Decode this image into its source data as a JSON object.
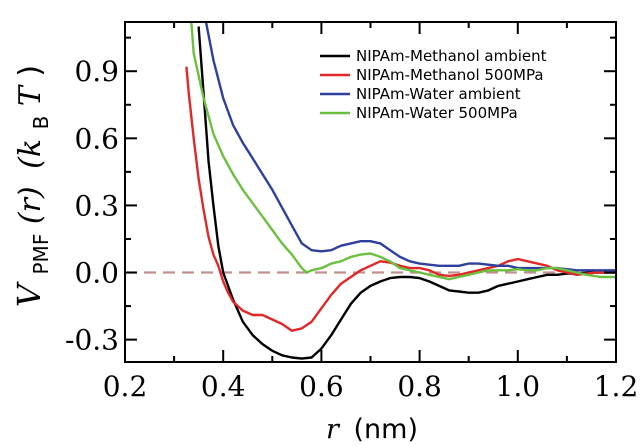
{
  "chart_data": {
    "type": "line",
    "xlabel": {
      "var": "r",
      "unit": "(nm)"
    },
    "ylabel": {
      "var": "V",
      "sub": "PMF",
      "arg": "(r)",
      "unit_open": "(k",
      "unit_sub": "B",
      "unit_T": "T",
      "unit_close": ")"
    },
    "xlim": [
      0.2,
      1.2
    ],
    "ylim": [
      -0.4,
      1.12
    ],
    "x_ticks": [
      0.2,
      0.4,
      0.6,
      0.8,
      1.0,
      1.2
    ],
    "x_tick_labels": [
      "0.2",
      "0.4",
      "0.6",
      "0.8",
      "1.0",
      "1.2"
    ],
    "y_ticks": [
      -0.3,
      0.0,
      0.3,
      0.6,
      0.9
    ],
    "y_tick_labels": [
      "-0.3",
      "0.0",
      "0.3",
      "0.6",
      "0.9"
    ],
    "reference_line": {
      "y": 0.0,
      "style": "dashed",
      "color": "#c09090"
    },
    "legend_position": "top-right",
    "series": [
      {
        "name": "NIPAm-Methanol ambient",
        "color": "#000000",
        "points": [
          [
            0.35,
            1.1
          ],
          [
            0.36,
            0.8
          ],
          [
            0.37,
            0.5
          ],
          [
            0.38,
            0.3
          ],
          [
            0.39,
            0.12
          ],
          [
            0.4,
            0.0
          ],
          [
            0.42,
            -0.12
          ],
          [
            0.44,
            -0.22
          ],
          [
            0.46,
            -0.28
          ],
          [
            0.48,
            -0.32
          ],
          [
            0.5,
            -0.35
          ],
          [
            0.52,
            -0.37
          ],
          [
            0.54,
            -0.38
          ],
          [
            0.56,
            -0.385
          ],
          [
            0.58,
            -0.38
          ],
          [
            0.6,
            -0.34
          ],
          [
            0.62,
            -0.28
          ],
          [
            0.64,
            -0.21
          ],
          [
            0.66,
            -0.14
          ],
          [
            0.68,
            -0.09
          ],
          [
            0.7,
            -0.06
          ],
          [
            0.72,
            -0.04
          ],
          [
            0.74,
            -0.025
          ],
          [
            0.76,
            -0.02
          ],
          [
            0.78,
            -0.02
          ],
          [
            0.8,
            -0.025
          ],
          [
            0.82,
            -0.04
          ],
          [
            0.84,
            -0.06
          ],
          [
            0.86,
            -0.08
          ],
          [
            0.88,
            -0.085
          ],
          [
            0.9,
            -0.09
          ],
          [
            0.92,
            -0.09
          ],
          [
            0.94,
            -0.08
          ],
          [
            0.96,
            -0.06
          ],
          [
            0.98,
            -0.05
          ],
          [
            1.0,
            -0.04
          ],
          [
            1.02,
            -0.03
          ],
          [
            1.04,
            -0.02
          ],
          [
            1.06,
            -0.01
          ],
          [
            1.08,
            -0.01
          ],
          [
            1.1,
            -0.005
          ],
          [
            1.12,
            -0.005
          ],
          [
            1.15,
            0.0
          ],
          [
            1.2,
            0.0
          ]
        ]
      },
      {
        "name": "NIPAm-Methanol 500MPa",
        "color": "#e02828",
        "points": [
          [
            0.325,
            0.92
          ],
          [
            0.33,
            0.8
          ],
          [
            0.34,
            0.6
          ],
          [
            0.35,
            0.42
          ],
          [
            0.36,
            0.28
          ],
          [
            0.37,
            0.16
          ],
          [
            0.38,
            0.08
          ],
          [
            0.39,
            0.03
          ],
          [
            0.4,
            -0.04
          ],
          [
            0.41,
            -0.09
          ],
          [
            0.42,
            -0.13
          ],
          [
            0.44,
            -0.17
          ],
          [
            0.46,
            -0.19
          ],
          [
            0.48,
            -0.19
          ],
          [
            0.5,
            -0.21
          ],
          [
            0.52,
            -0.23
          ],
          [
            0.54,
            -0.26
          ],
          [
            0.56,
            -0.25
          ],
          [
            0.58,
            -0.22
          ],
          [
            0.6,
            -0.16
          ],
          [
            0.62,
            -0.1
          ],
          [
            0.64,
            -0.05
          ],
          [
            0.66,
            -0.02
          ],
          [
            0.68,
            0.01
          ],
          [
            0.7,
            0.03
          ],
          [
            0.72,
            0.05
          ],
          [
            0.74,
            0.045
          ],
          [
            0.76,
            0.03
          ],
          [
            0.78,
            0.02
          ],
          [
            0.8,
            0.02
          ],
          [
            0.82,
            0.01
          ],
          [
            0.84,
            -0.01
          ],
          [
            0.86,
            -0.015
          ],
          [
            0.88,
            -0.01
          ],
          [
            0.9,
            0.0
          ],
          [
            0.92,
            0.01
          ],
          [
            0.94,
            0.02
          ],
          [
            0.96,
            0.03
          ],
          [
            0.98,
            0.05
          ],
          [
            1.0,
            0.06
          ],
          [
            1.02,
            0.05
          ],
          [
            1.04,
            0.04
          ],
          [
            1.06,
            0.03
          ],
          [
            1.08,
            0.01
          ],
          [
            1.1,
            0.0
          ],
          [
            1.12,
            -0.01
          ],
          [
            1.16,
            0.0
          ],
          [
            1.2,
            0.0
          ]
        ]
      },
      {
        "name": "NIPAm-Water ambient",
        "color": "#2e3f9e",
        "points": [
          [
            0.365,
            1.12
          ],
          [
            0.38,
            0.95
          ],
          [
            0.4,
            0.78
          ],
          [
            0.42,
            0.66
          ],
          [
            0.44,
            0.58
          ],
          [
            0.46,
            0.51
          ],
          [
            0.48,
            0.44
          ],
          [
            0.5,
            0.37
          ],
          [
            0.52,
            0.29
          ],
          [
            0.54,
            0.21
          ],
          [
            0.56,
            0.13
          ],
          [
            0.58,
            0.1
          ],
          [
            0.6,
            0.095
          ],
          [
            0.62,
            0.1
          ],
          [
            0.64,
            0.12
          ],
          [
            0.66,
            0.13
          ],
          [
            0.68,
            0.14
          ],
          [
            0.7,
            0.14
          ],
          [
            0.72,
            0.13
          ],
          [
            0.74,
            0.1
          ],
          [
            0.76,
            0.07
          ],
          [
            0.78,
            0.05
          ],
          [
            0.8,
            0.04
          ],
          [
            0.82,
            0.035
          ],
          [
            0.84,
            0.03
          ],
          [
            0.86,
            0.03
          ],
          [
            0.88,
            0.03
          ],
          [
            0.9,
            0.04
          ],
          [
            0.92,
            0.04
          ],
          [
            0.94,
            0.035
          ],
          [
            0.96,
            0.03
          ],
          [
            0.98,
            0.03
          ],
          [
            1.0,
            0.02
          ],
          [
            1.02,
            0.02
          ],
          [
            1.04,
            0.02
          ],
          [
            1.06,
            0.02
          ],
          [
            1.08,
            0.02
          ],
          [
            1.1,
            0.015
          ],
          [
            1.12,
            0.01
          ],
          [
            1.16,
            0.01
          ],
          [
            1.2,
            0.01
          ]
        ]
      },
      {
        "name": "NIPAm-Water 500MPa",
        "color": "#6cc040",
        "points": [
          [
            0.335,
            1.12
          ],
          [
            0.34,
            0.98
          ],
          [
            0.36,
            0.78
          ],
          [
            0.38,
            0.62
          ],
          [
            0.4,
            0.52
          ],
          [
            0.42,
            0.44
          ],
          [
            0.44,
            0.37
          ],
          [
            0.46,
            0.31
          ],
          [
            0.48,
            0.25
          ],
          [
            0.5,
            0.19
          ],
          [
            0.52,
            0.13
          ],
          [
            0.54,
            0.08
          ],
          [
            0.56,
            0.02
          ],
          [
            0.57,
            0.0
          ],
          [
            0.58,
            0.01
          ],
          [
            0.6,
            0.02
          ],
          [
            0.62,
            0.04
          ],
          [
            0.64,
            0.05
          ],
          [
            0.66,
            0.07
          ],
          [
            0.68,
            0.08
          ],
          [
            0.7,
            0.085
          ],
          [
            0.72,
            0.07
          ],
          [
            0.74,
            0.05
          ],
          [
            0.76,
            0.02
          ],
          [
            0.78,
            0.01
          ],
          [
            0.8,
            0.0
          ],
          [
            0.82,
            -0.01
          ],
          [
            0.84,
            -0.02
          ],
          [
            0.86,
            -0.03
          ],
          [
            0.88,
            -0.02
          ],
          [
            0.9,
            -0.01
          ],
          [
            0.92,
            0.0
          ],
          [
            0.94,
            0.01
          ],
          [
            0.96,
            0.01
          ],
          [
            0.98,
            0.01
          ],
          [
            1.0,
            0.015
          ],
          [
            1.02,
            0.01
          ],
          [
            1.04,
            0.01
          ],
          [
            1.06,
            0.02
          ],
          [
            1.08,
            0.02
          ],
          [
            1.1,
            0.01
          ],
          [
            1.12,
            0.0
          ],
          [
            1.14,
            -0.01
          ],
          [
            1.17,
            -0.02
          ],
          [
            1.2,
            -0.02
          ]
        ]
      }
    ]
  }
}
